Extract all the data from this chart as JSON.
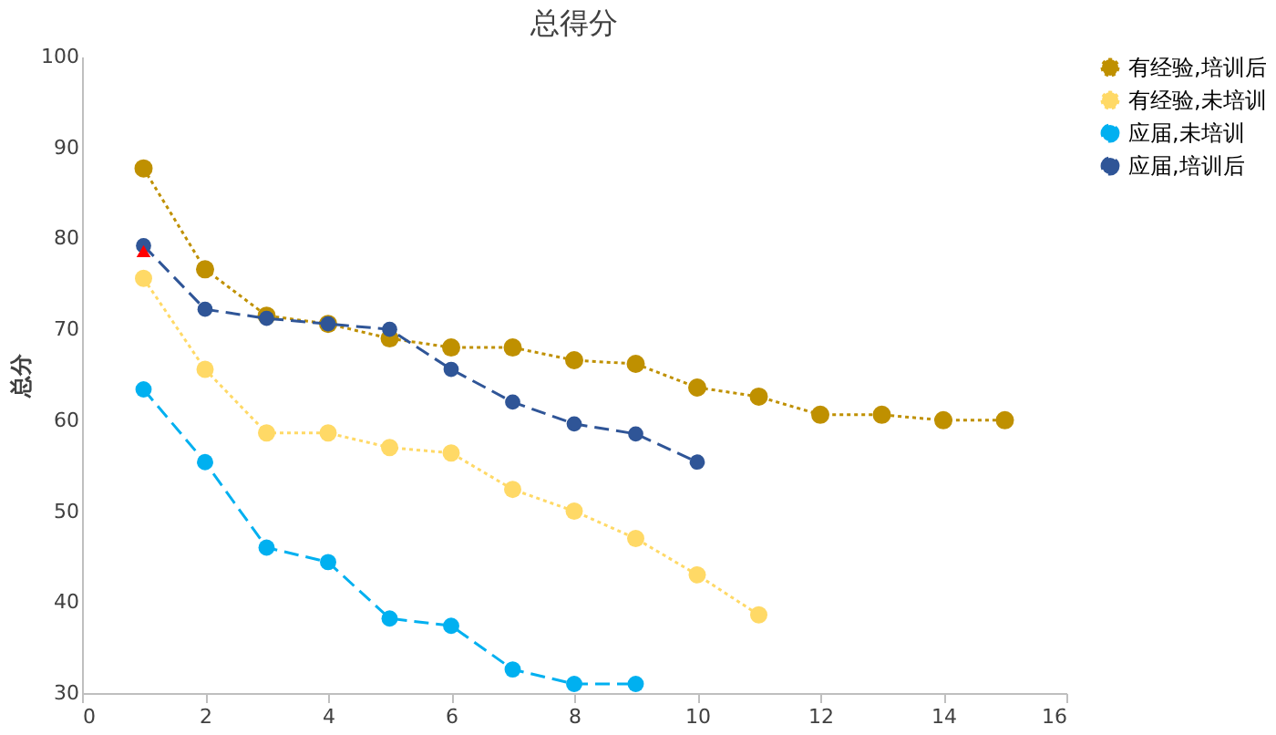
{
  "chart_data": {
    "type": "line",
    "title": "总得分",
    "ylabel": "总分",
    "xlim": [
      0,
      16
    ],
    "xticks": [
      0,
      2,
      4,
      6,
      8,
      10,
      12,
      14,
      16
    ],
    "ylim": [
      30,
      100
    ],
    "yticks": [
      30,
      40,
      50,
      60,
      70,
      80,
      90,
      100
    ],
    "grid": false,
    "legend": "right",
    "marker": "circle",
    "series": [
      {
        "name": "有经验,培训后",
        "color": "#bf9000",
        "line_style": "dotted",
        "x": [
          1,
          2,
          3,
          4,
          5,
          6,
          7,
          8,
          9,
          10,
          11,
          12,
          13,
          14,
          15
        ],
        "values": [
          87.7,
          76.6,
          71.5,
          70.6,
          69,
          68,
          68,
          66.6,
          66.2,
          63.6,
          62.6,
          60.6,
          60.6,
          60,
          60
        ]
      },
      {
        "name": "有经验,未培训",
        "color": "#ffd966",
        "line_style": "dotted",
        "x": [
          1,
          2,
          3,
          4,
          5,
          6,
          7,
          8,
          9,
          10,
          11
        ],
        "values": [
          75.6,
          65.6,
          58.6,
          58.6,
          57,
          56.4,
          52.4,
          50,
          47,
          43,
          38.6
        ]
      },
      {
        "name": "应届,未培训",
        "color": "#00b0f0",
        "line_style": "dashed",
        "x": [
          1,
          2,
          3,
          4,
          5,
          6,
          7,
          8,
          9
        ],
        "values": [
          63.4,
          55.4,
          46,
          44.4,
          38.2,
          37.4,
          32.6,
          31,
          31
        ]
      },
      {
        "name": "应届,培训后",
        "color": "#2f5597",
        "line_style": "dashed",
        "x": [
          1,
          2,
          3,
          4,
          5,
          6,
          7,
          8,
          9,
          10
        ],
        "values": [
          79.2,
          72.2,
          71.2,
          70.6,
          70,
          65.6,
          62,
          59.6,
          58.5,
          55.4
        ]
      },
      {
        "type": "scatter",
        "marker": "triangle",
        "color": "#ff0000",
        "x": [
          1
        ],
        "values": [
          78.6
        ]
      }
    ]
  }
}
